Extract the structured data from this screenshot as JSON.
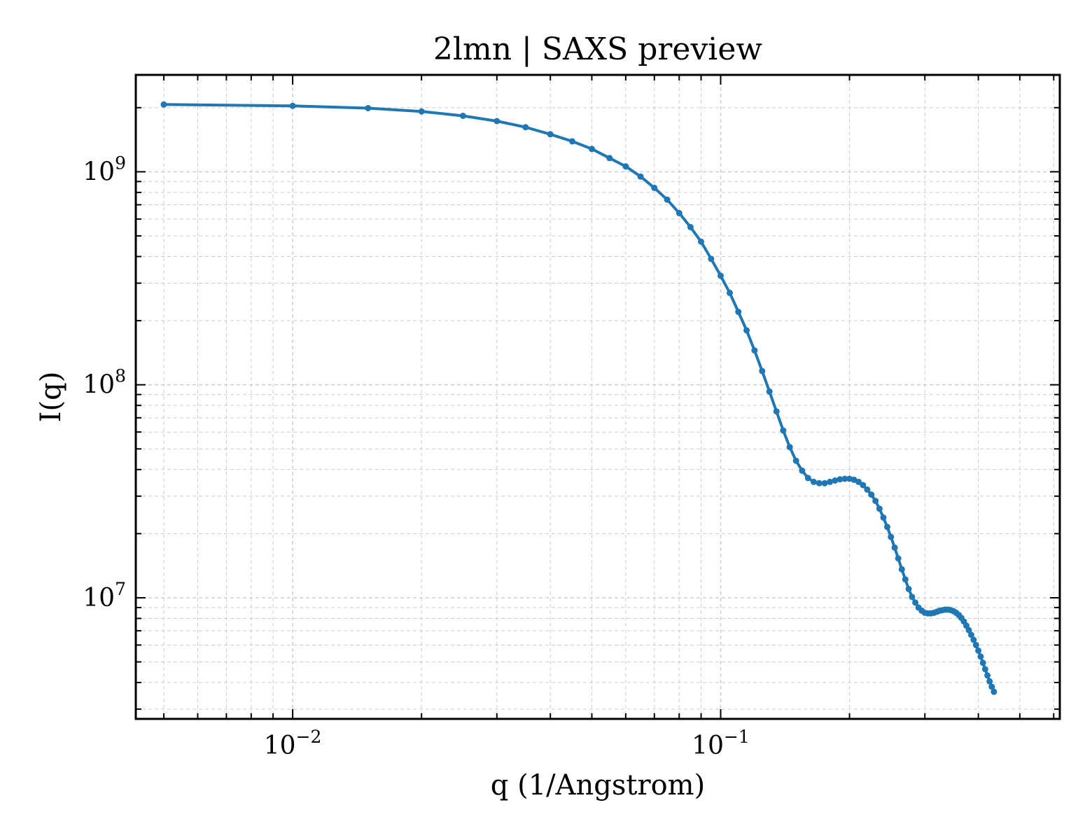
{
  "chart_data": {
    "type": "line",
    "title": "2lmn | SAXS preview",
    "xlabel": "q (1/Angstrom)",
    "ylabel": "I(q)",
    "xscale": "log",
    "yscale": "log",
    "xlim": [
      0.0043,
      0.62
    ],
    "ylim": [
      2700000.0,
      2850000000.0
    ],
    "grid": true,
    "legend": "none",
    "series_color": "#1f77b4",
    "x_ticks": [
      {
        "value": 0.01,
        "base": "10",
        "exp": "−2"
      },
      {
        "value": 0.1,
        "base": "10",
        "exp": "−1"
      }
    ],
    "y_ticks": [
      {
        "value": 10000000.0,
        "base": "10",
        "exp": "7"
      },
      {
        "value": 100000000.0,
        "base": "10",
        "exp": "8"
      },
      {
        "value": 1000000000.0,
        "base": "10",
        "exp": "9"
      }
    ],
    "series": [
      {
        "points": [
          [
            0.005,
            2070000000.0
          ],
          [
            0.01,
            2040000000.0
          ],
          [
            0.015,
            1990000000.0
          ],
          [
            0.02,
            1920000000.0
          ],
          [
            0.025,
            1830000000.0
          ],
          [
            0.03,
            1730000000.0
          ],
          [
            0.035,
            1620000000.0
          ],
          [
            0.04,
            1500000000.0
          ],
          [
            0.045,
            1390000000.0
          ],
          [
            0.05,
            1280000000.0
          ],
          [
            0.055,
            1160000000.0
          ],
          [
            0.06,
            1060000000.0
          ],
          [
            0.065,
            950000000.0
          ],
          [
            0.07,
            840000000.0
          ],
          [
            0.075,
            740000000.0
          ],
          [
            0.08,
            640000000.0
          ],
          [
            0.085,
            550000000.0
          ],
          [
            0.09,
            470000000.0
          ],
          [
            0.095,
            390000000.0
          ],
          [
            0.1,
            325000000.0
          ],
          [
            0.105,
            270000000.0
          ],
          [
            0.11,
            220000000.0
          ],
          [
            0.115,
            180000000.0
          ],
          [
            0.12,
            145000000.0
          ],
          [
            0.125,
            116000000.0
          ],
          [
            0.13,
            93000000.0
          ],
          [
            0.135,
            75000000.0
          ],
          [
            0.14,
            61000000.0
          ],
          [
            0.145,
            51000000.0
          ],
          [
            0.15,
            44000000.0
          ],
          [
            0.155,
            39500000.0
          ],
          [
            0.16,
            36500000.0
          ],
          [
            0.165,
            35000000.0
          ],
          [
            0.17,
            34500000.0
          ],
          [
            0.175,
            34500000.0
          ],
          [
            0.18,
            35000000.0
          ],
          [
            0.185,
            35500000.0
          ],
          [
            0.19,
            36000000.0
          ],
          [
            0.195,
            36200000.0
          ],
          [
            0.2,
            36200000.0
          ],
          [
            0.205,
            35800000.0
          ],
          [
            0.21,
            35000000.0
          ],
          [
            0.215,
            33800000.0
          ],
          [
            0.22,
            32200000.0
          ],
          [
            0.225,
            30500000.0
          ],
          [
            0.23,
            28500000.0
          ],
          [
            0.235,
            26200000.0
          ],
          [
            0.24,
            23800000.0
          ],
          [
            0.245,
            21500000.0
          ],
          [
            0.25,
            19300000.0
          ],
          [
            0.255,
            17200000.0
          ],
          [
            0.26,
            15300000.0
          ],
          [
            0.265,
            13600000.0
          ],
          [
            0.27,
            12200000.0
          ],
          [
            0.275,
            11000000.0
          ],
          [
            0.28,
            10100000.0
          ],
          [
            0.285,
            9500000.0
          ],
          [
            0.29,
            9000000.0
          ],
          [
            0.295,
            8700000.0
          ],
          [
            0.3,
            8500000.0
          ],
          [
            0.305,
            8450000.0
          ],
          [
            0.31,
            8450000.0
          ],
          [
            0.315,
            8500000.0
          ],
          [
            0.32,
            8600000.0
          ],
          [
            0.325,
            8700000.0
          ],
          [
            0.33,
            8750000.0
          ],
          [
            0.335,
            8800000.0
          ],
          [
            0.34,
            8800000.0
          ],
          [
            0.345,
            8750000.0
          ],
          [
            0.35,
            8650000.0
          ],
          [
            0.355,
            8500000.0
          ],
          [
            0.36,
            8300000.0
          ],
          [
            0.365,
            8050000.0
          ],
          [
            0.37,
            7750000.0
          ],
          [
            0.375,
            7400000.0
          ],
          [
            0.38,
            7050000.0
          ],
          [
            0.385,
            6700000.0
          ],
          [
            0.39,
            6350000.0
          ],
          [
            0.395,
            6000000.0
          ],
          [
            0.4,
            5650000.0
          ],
          [
            0.405,
            5300000.0
          ],
          [
            0.41,
            4950000.0
          ],
          [
            0.415,
            4620000.0
          ],
          [
            0.42,
            4320000.0
          ],
          [
            0.425,
            4050000.0
          ],
          [
            0.43,
            3820000.0
          ],
          [
            0.435,
            3620000.0
          ]
        ]
      }
    ]
  }
}
